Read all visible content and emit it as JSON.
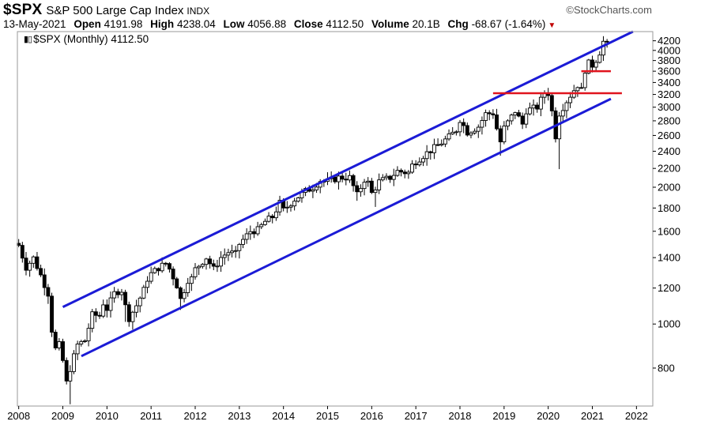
{
  "header": {
    "symbol": "$SPX",
    "name": "S&P 500 Large Cap Index",
    "type": "INDX",
    "brand": "StockCharts.com",
    "date": "13-May-2021",
    "open_label": "Open",
    "open": "4191.98",
    "high_label": "High",
    "high": "4238.04",
    "low_label": "Low",
    "low": "4056.88",
    "close_label": "Close",
    "close": "4112.50",
    "volume_label": "Volume",
    "volume": "20.1B",
    "chg_label": "Chg",
    "chg": "-68.67 (-1.64%)"
  },
  "series_label": "$SPX (Monthly) 4112.50",
  "colors": {
    "candle": "#000000",
    "trend_channel": "#1b1bd6",
    "resistance": "#e0141e",
    "frame": "#9a9a9a"
  },
  "icons": {
    "brand": "copyright-icon",
    "series": "candlestick-icon",
    "change": "down-arrow-icon"
  },
  "chart_data": {
    "type": "candlestick",
    "title": "$SPX S&P 500 Large Cap Index",
    "scale": "log",
    "grid": false,
    "y_ticks": [
      800,
      1000,
      1200,
      1400,
      1600,
      1800,
      2000,
      2200,
      2400,
      2600,
      2800,
      3000,
      3200,
      3400,
      3600,
      3800,
      4000,
      4200
    ],
    "x_ticks": [
      "2008",
      "2009",
      "2010",
      "2011",
      "2012",
      "2013",
      "2014",
      "2015",
      "2016",
      "2017",
      "2018",
      "2019",
      "2020",
      "2021",
      "2022"
    ],
    "xlim": [
      "2008-01",
      "2022-06"
    ],
    "ylim": [
      660,
      4400
    ],
    "monthly_close": [
      [
        2008.0,
        1490
      ],
      [
        2008.17,
        1330
      ],
      [
        2008.33,
        1400
      ],
      [
        2008.5,
        1280
      ],
      [
        2008.67,
        1165
      ],
      [
        2008.75,
        970
      ],
      [
        2008.83,
        880
      ],
      [
        2008.92,
        900
      ],
      [
        2009.0,
        830
      ],
      [
        2009.08,
        740
      ],
      [
        2009.17,
        800
      ],
      [
        2009.33,
        900
      ],
      [
        2009.5,
        920
      ],
      [
        2009.67,
        1050
      ],
      [
        2009.83,
        1040
      ],
      [
        2009.92,
        1115
      ],
      [
        2010.0,
        1080
      ],
      [
        2010.17,
        1170
      ],
      [
        2010.33,
        1190
      ],
      [
        2010.42,
        1090
      ],
      [
        2010.5,
        1030
      ],
      [
        2010.67,
        1100
      ],
      [
        2010.83,
        1185
      ],
      [
        2010.92,
        1260
      ],
      [
        2011.0,
        1290
      ],
      [
        2011.17,
        1330
      ],
      [
        2011.33,
        1360
      ],
      [
        2011.42,
        1320
      ],
      [
        2011.58,
        1220
      ],
      [
        2011.67,
        1130
      ],
      [
        2011.83,
        1250
      ],
      [
        2011.92,
        1260
      ],
      [
        2012.0,
        1320
      ],
      [
        2012.25,
        1400
      ],
      [
        2012.42,
        1320
      ],
      [
        2012.58,
        1400
      ],
      [
        2012.75,
        1440
      ],
      [
        2012.92,
        1426
      ],
      [
        2013.0,
        1500
      ],
      [
        2013.25,
        1600
      ],
      [
        2013.42,
        1610
      ],
      [
        2013.58,
        1680
      ],
      [
        2013.75,
        1720
      ],
      [
        2013.92,
        1848
      ],
      [
        2014.0,
        1780
      ],
      [
        2014.25,
        1880
      ],
      [
        2014.5,
        1960
      ],
      [
        2014.67,
        2000
      ],
      [
        2014.83,
        2070
      ],
      [
        2014.92,
        2060
      ],
      [
        2015.0,
        2060
      ],
      [
        2015.25,
        2100
      ],
      [
        2015.5,
        2100
      ],
      [
        2015.67,
        1920
      ],
      [
        2015.83,
        2080
      ],
      [
        2015.92,
        2044
      ],
      [
        2016.0,
        1940
      ],
      [
        2016.17,
        2060
      ],
      [
        2016.42,
        2100
      ],
      [
        2016.58,
        2170
      ],
      [
        2016.83,
        2150
      ],
      [
        2016.92,
        2240
      ],
      [
        2017.0,
        2280
      ],
      [
        2017.25,
        2380
      ],
      [
        2017.5,
        2470
      ],
      [
        2017.75,
        2580
      ],
      [
        2017.92,
        2674
      ],
      [
        2018.0,
        2820
      ],
      [
        2018.17,
        2640
      ],
      [
        2018.42,
        2720
      ],
      [
        2018.58,
        2900
      ],
      [
        2018.75,
        2910
      ],
      [
        2018.83,
        2700
      ],
      [
        2018.92,
        2510
      ],
      [
        2019.0,
        2700
      ],
      [
        2019.25,
        2940
      ],
      [
        2019.42,
        2750
      ],
      [
        2019.5,
        2950
      ],
      [
        2019.75,
        3000
      ],
      [
        2019.92,
        3230
      ],
      [
        2020.0,
        3220
      ],
      [
        2020.08,
        2950
      ],
      [
        2020.17,
        2580
      ],
      [
        2020.25,
        2910
      ],
      [
        2020.42,
        3100
      ],
      [
        2020.58,
        3270
      ],
      [
        2020.67,
        3360
      ],
      [
        2020.75,
        3270
      ],
      [
        2020.83,
        3620
      ],
      [
        2020.92,
        3750
      ],
      [
        2021.0,
        3710
      ],
      [
        2021.08,
        3810
      ],
      [
        2021.17,
        3970
      ],
      [
        2021.25,
        4180
      ],
      [
        2021.33,
        4112
      ]
    ],
    "annotations": [
      {
        "type": "trend_line",
        "label": "upper channel",
        "from": [
          2009.0,
          1090
        ],
        "to": [
          2021.92,
          4400
        ]
      },
      {
        "type": "trend_line",
        "label": "lower channel",
        "from": [
          2009.42,
          850
        ],
        "to": [
          2021.42,
          3130
        ]
      },
      {
        "type": "horizontal_line",
        "label": "resistance",
        "y": 3220,
        "from": 2018.75,
        "to": 2021.67
      },
      {
        "type": "horizontal_line",
        "label": "resistance",
        "y": 3600,
        "from": 2020.75,
        "to": 2021.42
      }
    ]
  }
}
